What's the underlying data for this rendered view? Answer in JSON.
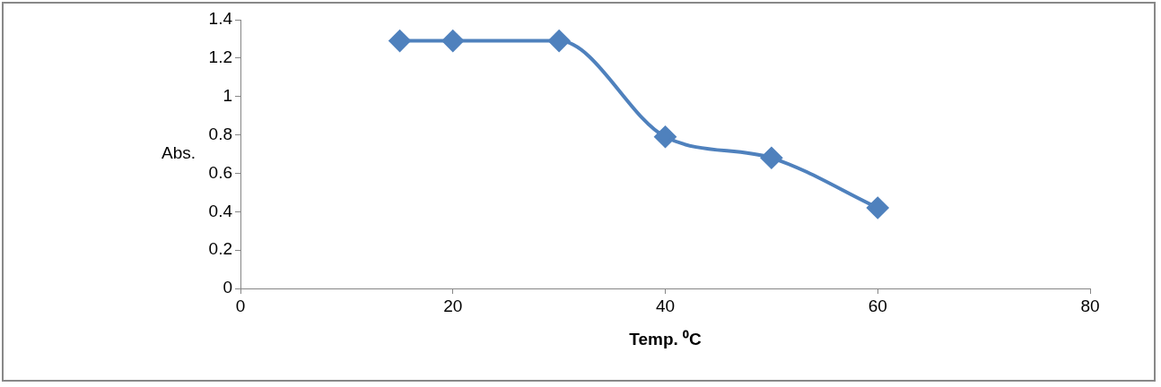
{
  "chart_data": {
    "type": "line",
    "xlabel": "Temp. ⁰C",
    "ylabel": "Abs.",
    "x": [
      15,
      20,
      30,
      40,
      50,
      60
    ],
    "series": [
      {
        "color": "#4f81bd",
        "values": [
          1.29,
          1.29,
          1.29,
          0.79,
          0.68,
          0.42
        ]
      }
    ],
    "xlim": [
      0,
      80
    ],
    "xticks": [
      0,
      20,
      40,
      60,
      80
    ],
    "ylim": [
      0,
      1.4
    ],
    "yticks": [
      0,
      0.2,
      0.4,
      0.6,
      0.8,
      1,
      1.2,
      1.4
    ],
    "grid": false,
    "legend": false,
    "marker": "diamond",
    "line_style": "solid"
  }
}
